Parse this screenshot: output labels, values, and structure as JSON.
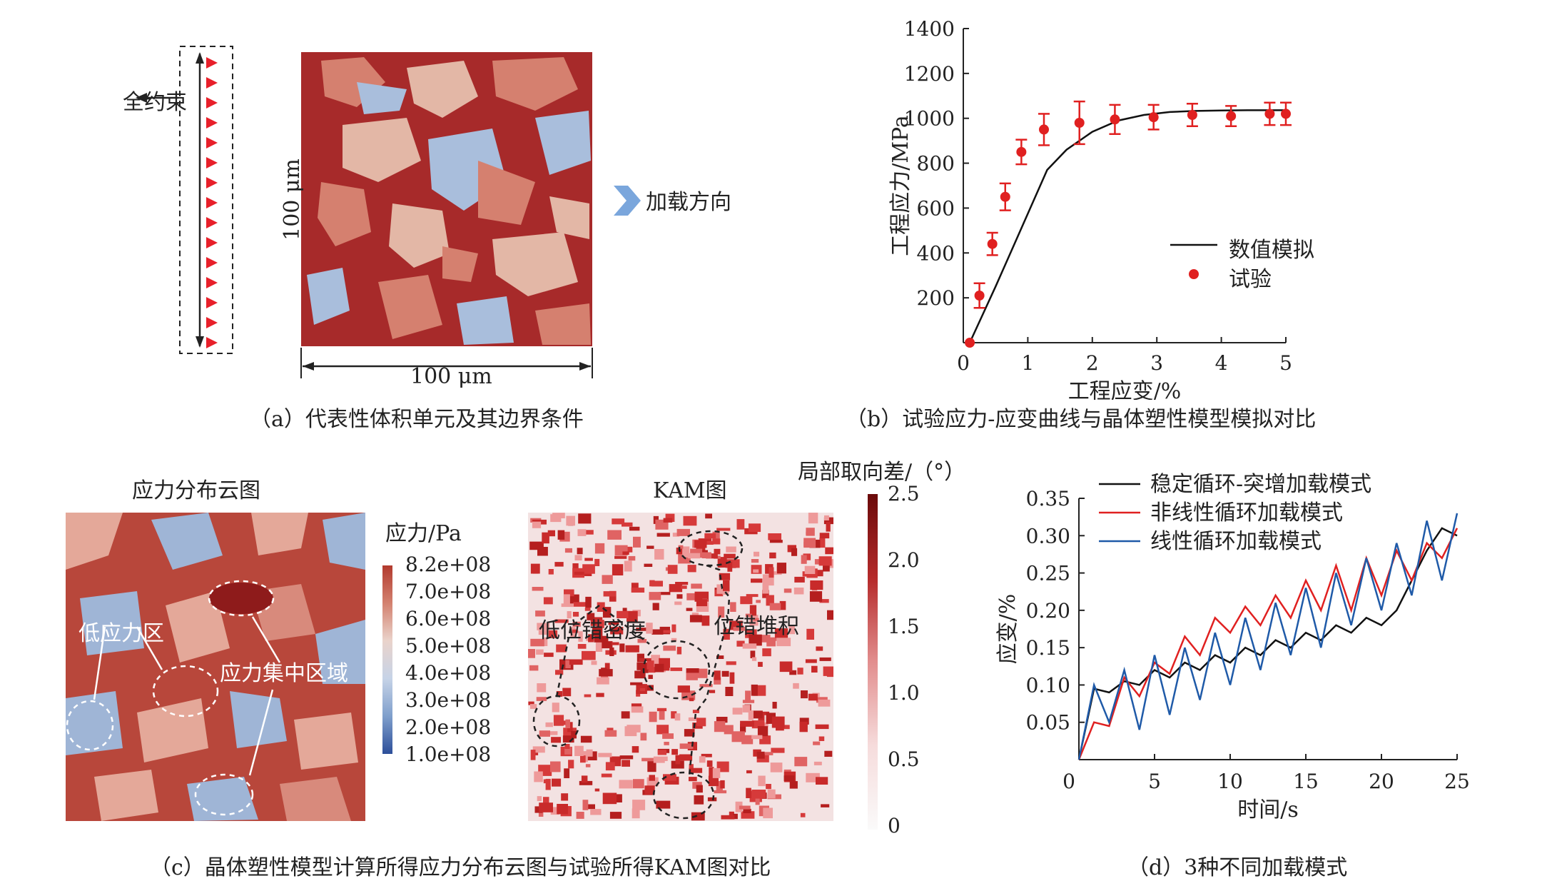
{
  "panel_a": {
    "caption": "（a）代表性体积单元及其边界条件",
    "constraint_label": "全约束",
    "load_label": "加载方向",
    "height_dim": "100 μm",
    "width_dim": "100 μm",
    "colors": {
      "dark_grain": "#a72a2a",
      "mid_grain": "#d5806f",
      "light_grain": "#e3b7a6",
      "blue_grain": "#a9bedc",
      "triangle": "#e8202a",
      "arrow": "#7aa6dc"
    }
  },
  "panel_b": {
    "caption": "（b）试验应力-应变曲线与晶体塑性模型模拟对比",
    "legend_sim": "数值模拟",
    "legend_exp": "试验",
    "chart_data": {
      "type": "line",
      "xlabel": "工程应变/%",
      "ylabel": "工程应力/MPa",
      "xlim": [
        0,
        5
      ],
      "ylim": [
        0,
        1400
      ],
      "xticks": [
        "0",
        "1",
        "2",
        "3",
        "4",
        "5"
      ],
      "yticks": [
        "200",
        "400",
        "600",
        "800",
        "1000",
        "1200",
        "1400"
      ],
      "series": [
        {
          "name": "数值模拟",
          "kind": "line",
          "color": "#111111",
          "x": [
            0.1,
            0.3,
            0.5,
            0.7,
            0.9,
            1.1,
            1.3,
            1.6,
            2.0,
            2.4,
            2.8,
            3.2,
            3.6,
            4.0,
            4.4,
            4.8,
            5.0
          ],
          "y": [
            0,
            125,
            250,
            380,
            510,
            640,
            770,
            860,
            940,
            990,
            1015,
            1028,
            1033,
            1035,
            1036,
            1036,
            1036
          ]
        },
        {
          "name": "试验",
          "kind": "scatter",
          "color": "#e02020",
          "x": [
            0.1,
            0.25,
            0.45,
            0.65,
            0.9,
            1.25,
            1.8,
            2.35,
            2.95,
            3.55,
            4.15,
            4.75,
            5.0
          ],
          "y": [
            0,
            210,
            440,
            650,
            850,
            950,
            980,
            995,
            1005,
            1015,
            1010,
            1020,
            1020
          ],
          "err": [
            0,
            55,
            50,
            60,
            55,
            70,
            95,
            65,
            55,
            50,
            45,
            50,
            50
          ]
        }
      ]
    }
  },
  "panel_c": {
    "caption": "（c）晶体塑性模型计算所得应力分布云图与试验所得KAM图对比",
    "stress_title": "应力分布云图",
    "kam_title": "KAM图",
    "stress_cbar_title": "应力/Pa",
    "stress_cbar_ticks": [
      "8.2e+08",
      "7.0e+08",
      "6.0e+08",
      "5.0e+08",
      "4.0e+08",
      "3.0e+08",
      "2.0e+08",
      "1.0e+08"
    ],
    "kam_cbar_title": "局部取向差/（°）",
    "kam_cbar_ticks": [
      "2.5",
      "2.0",
      "1.5",
      "1.0",
      "0.5",
      "0"
    ],
    "low_stress": "低应力区",
    "stress_conc": "应力集中区域",
    "low_disloc": "低位错密度",
    "disloc_pileup": "位错堆积"
  },
  "panel_d": {
    "caption": "（d）3种不同加载模式",
    "chart_data": {
      "type": "line",
      "xlabel": "时间/s",
      "ylabel": "应变/%",
      "xlim": [
        0,
        25
      ],
      "ylim": [
        0,
        0.35
      ],
      "xticks": [
        "0",
        "5",
        "10",
        "15",
        "20",
        "25"
      ],
      "yticks": [
        "0.05",
        "0.10",
        "0.15",
        "0.20",
        "0.25",
        "0.30",
        "0.35"
      ],
      "series": [
        {
          "name": "稳定循环-突增加载模式",
          "color": "#111111",
          "x": [
            0,
            1,
            2,
            3,
            4,
            5,
            6,
            7,
            8,
            9,
            10,
            11,
            12,
            13,
            14,
            15,
            16,
            17,
            18,
            19,
            20,
            21,
            22,
            23,
            24,
            25
          ],
          "y": [
            0,
            0.095,
            0.09,
            0.105,
            0.1,
            0.12,
            0.11,
            0.13,
            0.12,
            0.14,
            0.13,
            0.15,
            0.14,
            0.16,
            0.15,
            0.17,
            0.16,
            0.18,
            0.17,
            0.19,
            0.18,
            0.2,
            0.24,
            0.28,
            0.31,
            0.3
          ]
        },
        {
          "name": "非线性循环加载模式",
          "color": "#e02020",
          "x": [
            0,
            1,
            2,
            3,
            4,
            5,
            6,
            7,
            8,
            9,
            10,
            11,
            12,
            13,
            14,
            15,
            16,
            17,
            18,
            19,
            20,
            21,
            22,
            23,
            24,
            25
          ],
          "y": [
            0,
            0.05,
            0.045,
            0.11,
            0.085,
            0.13,
            0.115,
            0.165,
            0.14,
            0.19,
            0.17,
            0.205,
            0.18,
            0.22,
            0.19,
            0.24,
            0.2,
            0.26,
            0.2,
            0.27,
            0.22,
            0.28,
            0.24,
            0.29,
            0.27,
            0.31
          ]
        },
        {
          "name": "线性循环加载模式",
          "color": "#1f5aa8",
          "x": [
            0,
            1,
            2,
            3,
            4,
            5,
            6,
            7,
            8,
            9,
            10,
            11,
            12,
            13,
            14,
            15,
            16,
            17,
            18,
            19,
            20,
            21,
            22,
            23,
            24,
            25
          ],
          "y": [
            0,
            0.1,
            0.05,
            0.12,
            0.04,
            0.14,
            0.06,
            0.15,
            0.08,
            0.17,
            0.1,
            0.19,
            0.12,
            0.21,
            0.14,
            0.23,
            0.15,
            0.25,
            0.18,
            0.27,
            0.2,
            0.29,
            0.22,
            0.32,
            0.24,
            0.33
          ]
        }
      ]
    }
  }
}
